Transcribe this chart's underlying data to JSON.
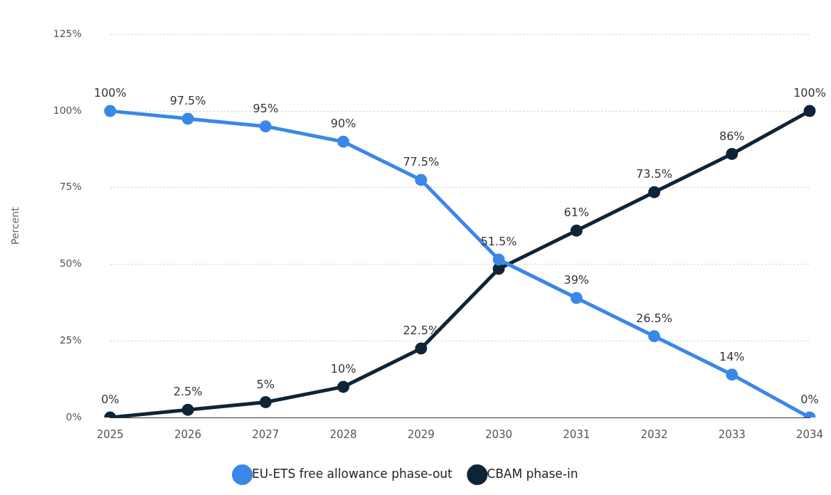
{
  "chart_data": {
    "type": "line",
    "ylabel": "Percent",
    "categories": [
      "2025",
      "2026",
      "2027",
      "2028",
      "2029",
      "2030",
      "2031",
      "2032",
      "2033",
      "2034"
    ],
    "series": [
      {
        "name": "EU-ETS free allowance phase-out",
        "color": "#3a87e8",
        "values": [
          100,
          97.5,
          95,
          90,
          77.5,
          51.5,
          39,
          26.5,
          14,
          0
        ],
        "value_labels": [
          "100%",
          "97.5%",
          "95%",
          "90%",
          "77.5%",
          "51.5%",
          "39%",
          "26.5%",
          "14%",
          "0%"
        ]
      },
      {
        "name": "CBAM phase-in",
        "color": "#0f2436",
        "values": [
          0,
          2.5,
          5,
          10,
          22.5,
          48.5,
          61,
          73.5,
          86,
          100
        ],
        "value_labels": [
          "0%",
          "2.5%",
          "5%",
          "10%",
          "22.5%",
          null,
          "61%",
          "73.5%",
          "86%",
          "100%"
        ]
      }
    ],
    "ylim": [
      0,
      125
    ],
    "yticks": [
      {
        "value": 0,
        "label": "0%"
      },
      {
        "value": 25,
        "label": "25%"
      },
      {
        "value": 50,
        "label": "50%"
      },
      {
        "value": 75,
        "label": "75%"
      },
      {
        "value": 100,
        "label": "100%"
      },
      {
        "value": 125,
        "label": "125%"
      }
    ],
    "grid": "y",
    "legend": "bottom",
    "marker": "circle",
    "line_style": "solid"
  }
}
